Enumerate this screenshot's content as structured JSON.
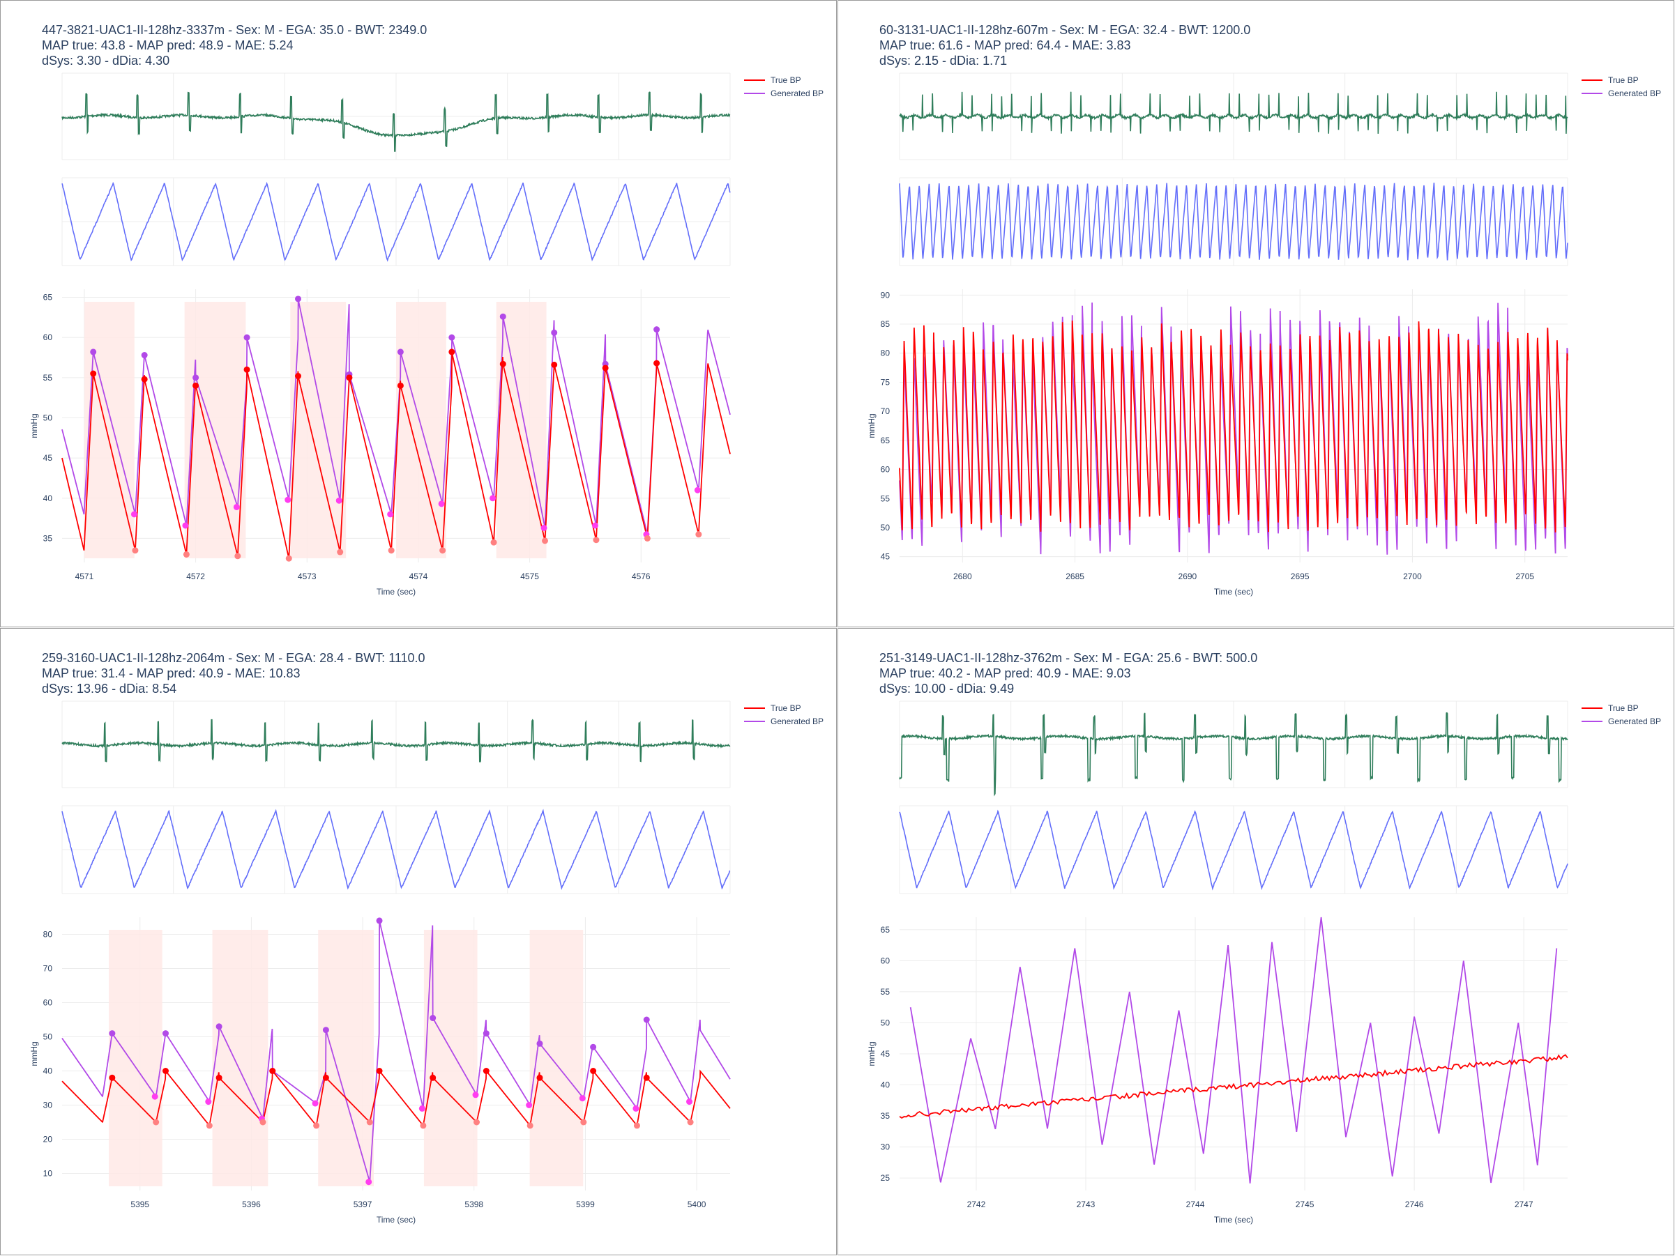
{
  "colors": {
    "ecg": "#2e7d5a",
    "ppg": "#636efa",
    "true_bp": "#ff0000",
    "generated_bp": "#b249e8",
    "peak_marker": "#ff3df0",
    "trough_marker": "#ff8080",
    "band": "#ffe9e6",
    "grid": "#ececec",
    "text": "#2a3f5f"
  },
  "legend": {
    "true_bp": "True BP",
    "generated_bp": "Generated BP"
  },
  "axis_titles": {
    "x": "Time (sec)",
    "y": "mmHg"
  },
  "panels": [
    {
      "header": [
        "447-3821-UAC1-II-128hz-3337m - Sex: M - EGA: 35.0 - BWT: 2349.0",
        "MAP true: 43.8 - MAP pred: 48.9 - MAE: 5.24",
        "dSys: 3.30 - dDia: 4.30"
      ],
      "chart_data": {
        "type": "line",
        "title": "447-3821-UAC1-II-128hz-3337m",
        "xlabel": "Time (sec)",
        "ylabel": "mmHg",
        "xlim": [
          4570.8,
          4576.8
        ],
        "ylim": [
          32,
          66
        ],
        "xticks": [
          4571,
          4572,
          4573,
          4574,
          4575,
          4576
        ],
        "yticks": [
          35,
          40,
          45,
          50,
          55,
          60,
          65
        ],
        "beat_period_sec": 0.46,
        "first_beat_sec": 4571.08,
        "beats": 12,
        "true_bp": {
          "systolic": [
            55.5,
            54.8,
            54.0,
            56.0,
            55.2,
            55.0,
            54.0,
            58.2,
            56.7,
            56.6,
            56.2,
            56.8
          ],
          "diastolic": [
            33.5,
            33.0,
            32.8,
            32.5,
            33.3,
            33.5,
            33.5,
            34.5,
            34.7,
            34.8,
            35.0,
            35.5
          ]
        },
        "generated_bp": {
          "systolic": [
            58.2,
            57.8,
            55.0,
            60.0,
            64.8,
            55.4,
            58.2,
            60.0,
            62.6,
            60.6,
            56.7,
            61.0
          ],
          "diastolic": [
            38.0,
            36.6,
            38.9,
            39.8,
            39.7,
            38.0,
            39.3,
            40.0,
            36.3,
            36.6,
            35.5,
            41.0
          ]
        },
        "bands": [
          [
            4571.0,
            4571.45
          ],
          [
            4571.9,
            4572.45
          ],
          [
            4572.85,
            4573.35
          ],
          [
            4573.8,
            4574.25
          ],
          [
            4574.7,
            4575.15
          ]
        ],
        "ecg_events": "baseline wander dip around 4573.5-4574.5 s"
      }
    },
    {
      "header": [
        "60-3131-UAC1-II-128hz-607m - Sex: M - EGA: 32.4 - BWT: 1200.0",
        "MAP true: 61.6 - MAP pred: 64.4 - MAE: 3.83",
        "dSys: 2.15 - dDia: 1.71"
      ],
      "chart_data": {
        "type": "line",
        "title": "60-3131-UAC1-II-128hz-607m",
        "xlabel": "Time (sec)",
        "ylabel": "mmHg",
        "xlim": [
          2677.2,
          2706.9
        ],
        "ylim": [
          44,
          91
        ],
        "xticks": [
          2680,
          2685,
          2690,
          2695,
          2700,
          2705
        ],
        "yticks": [
          45,
          50,
          55,
          60,
          65,
          70,
          75,
          80,
          85,
          90
        ],
        "beat_period_sec": 0.44,
        "first_beat_sec": 2677.4,
        "beats": 67,
        "true_bp": {
          "systolic_range": [
            80,
            86
          ],
          "diastolic_range": [
            49,
            52
          ]
        },
        "generated_bp": {
          "systolic_range": [
            78,
            89
          ],
          "diastolic_range": [
            45,
            54
          ]
        },
        "bands": []
      }
    },
    {
      "header": [
        "259-3160-UAC1-II-128hz-2064m - Sex: M - EGA: 28.4 - BWT: 1110.0",
        "MAP true: 31.4 - MAP pred: 40.9 - MAE: 10.83",
        "dSys: 13.96 - dDia: 8.54"
      ],
      "chart_data": {
        "type": "line",
        "title": "259-3160-UAC1-II-128hz-2064m",
        "xlabel": "Time (sec)",
        "ylabel": "mmHg",
        "xlim": [
          5394.3,
          5400.3
        ],
        "ylim": [
          5,
          85
        ],
        "xticks": [
          5395,
          5396,
          5397,
          5398,
          5399,
          5400
        ],
        "yticks": [
          10,
          20,
          30,
          40,
          50,
          60,
          70,
          80
        ],
        "beat_period_sec": 0.48,
        "first_beat_sec": 5394.75,
        "beats": 13,
        "true_bp": {
          "systolic": [
            38.0,
            40.0,
            38.0,
            40.0,
            38.0,
            40.0,
            38.0,
            40.0,
            38.0,
            40.0,
            38.0,
            40.0,
            39.0
          ],
          "diastolic": [
            25.0,
            24.0,
            25.0,
            24.0,
            25.0,
            24.0,
            25.0,
            24.0,
            25.0,
            24.0,
            25.0,
            24.0,
            26.0
          ]
        },
        "generated_bp": {
          "systolic": [
            51.0,
            51.0,
            53.0,
            40.0,
            52.0,
            84.0,
            55.5,
            51.0,
            48.0,
            47.0,
            55.0,
            52.0,
            46.0
          ],
          "diastolic": [
            32.5,
            31.0,
            26.0,
            30.5,
            7.5,
            29.0,
            33.0,
            30.0,
            32.0,
            29.0,
            31.0,
            31.0,
            33.0
          ]
        },
        "bands": [
          [
            5394.72,
            5395.2
          ],
          [
            5395.65,
            5396.15
          ],
          [
            5396.6,
            5397.1
          ],
          [
            5397.55,
            5398.03
          ],
          [
            5398.5,
            5398.98
          ]
        ],
        "artifact": "generated BP spike up to ~84 mmHg near 5397.1 s"
      }
    },
    {
      "header": [
        "251-3149-UAC1-II-128hz-3762m - Sex: M - EGA: 25.6 - BWT: 500.0",
        "MAP true: 40.2 - MAP pred: 40.9 - MAE: 9.03",
        "dSys: 10.00 - dDia: 9.49"
      ],
      "chart_data": {
        "type": "line",
        "title": "251-3149-UAC1-II-128hz-3762m",
        "xlabel": "Time (sec)",
        "ylabel": "mmHg",
        "xlim": [
          2741.3,
          2747.4
        ],
        "ylim": [
          23,
          67
        ],
        "xticks": [
          2742,
          2743,
          2744,
          2745,
          2746,
          2747
        ],
        "yticks": [
          25,
          30,
          35,
          40,
          45,
          50,
          55,
          60,
          65
        ],
        "true_bp": {
          "trend_start": [
            2741.3,
            35.0
          ],
          "trend_end": [
            2747.4,
            44.5
          ]
        },
        "generated_bp": {
          "peaks": [
            [
              2741.4,
              52.5
            ],
            [
              2741.95,
              47.5
            ],
            [
              2742.4,
              59.0
            ],
            [
              2742.9,
              62.0
            ],
            [
              2743.4,
              55.0
            ],
            [
              2743.85,
              52.0
            ],
            [
              2744.3,
              62.5
            ],
            [
              2744.7,
              63.0
            ],
            [
              2745.15,
              67.0
            ],
            [
              2745.6,
              50.0
            ],
            [
              2746.0,
              51.0
            ],
            [
              2746.45,
              60.0
            ],
            [
              2746.95,
              50.0
            ],
            [
              2747.3,
              62.0
            ]
          ],
          "troughs_range": [
            23,
            33
          ]
        },
        "bands": []
      }
    }
  ]
}
